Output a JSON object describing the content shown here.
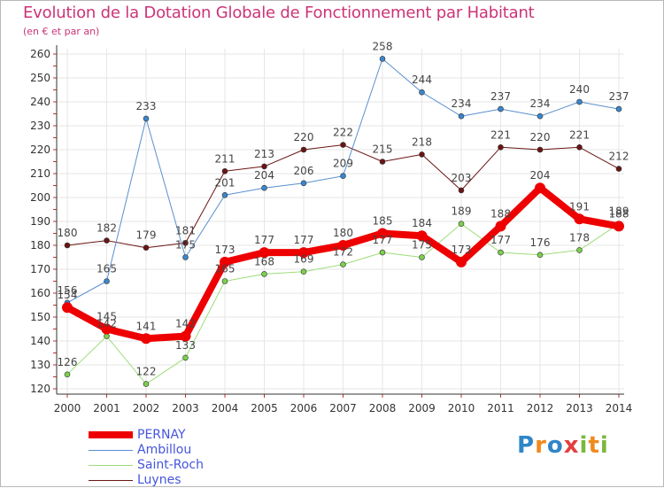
{
  "title": "Evolution de la Dotation Globale de Fonctionnement par Habitant",
  "subtitle": "(en € et par an)",
  "logo": [
    "Pro",
    "x",
    "i",
    "ti"
  ],
  "colors": {
    "title": "#cc3377",
    "axis": "#333333",
    "grid": "#e6e6e6",
    "label": "#444444",
    "legend_text": "#4455dd"
  },
  "chart_data": {
    "type": "line",
    "x": [
      "2000",
      "2001",
      "2002",
      "2003",
      "2004",
      "2005",
      "2006",
      "2007",
      "2008",
      "2009",
      "2010",
      "2011",
      "2012",
      "2013",
      "2014"
    ],
    "ylim": [
      120,
      260
    ],
    "yticks": [
      "120",
      "130",
      "140",
      "150",
      "160",
      "170",
      "180",
      "190",
      "200",
      "210",
      "220",
      "230",
      "240",
      "250",
      "260"
    ],
    "grid": true,
    "legend_position": "bottom-left",
    "series": [
      {
        "name": "Luynes",
        "color": "#6b1414",
        "marker": "#6b1414",
        "width": 1,
        "values": [
          180,
          182,
          179,
          181,
          211,
          213,
          220,
          222,
          215,
          218,
          203,
          221,
          220,
          221,
          212
        ],
        "labels": [
          "180",
          "182",
          "179",
          "181",
          "211",
          "213",
          "220",
          "222",
          "215",
          "218",
          "203",
          "221",
          "220",
          "221",
          "212"
        ]
      },
      {
        "name": "Ambillou",
        "color": "#5a8fd0",
        "marker": "#3a86cc",
        "width": 1,
        "values": [
          156,
          165,
          233,
          175,
          201,
          204,
          206,
          209,
          258,
          244,
          234,
          237,
          234,
          240,
          237
        ],
        "labels": [
          "156",
          "165",
          "233",
          "175",
          "201",
          "204",
          "206",
          "209",
          "258",
          "244",
          "234",
          "237",
          "234",
          "240",
          "237"
        ]
      },
      {
        "name": "Saint-Roch",
        "color": "#9edc7a",
        "marker": "#7ccf4e",
        "width": 1,
        "values": [
          126,
          142,
          122,
          133,
          165,
          168,
          169,
          172,
          177,
          175,
          189,
          177,
          176,
          178,
          189
        ],
        "labels": [
          "126",
          "142",
          "122",
          "133",
          "165",
          "168",
          "169",
          "172",
          "177",
          "175",
          "189",
          "177",
          "176",
          "178",
          "189"
        ]
      },
      {
        "name": "PERNAY",
        "color": "#ee0000",
        "marker": "#ee0000",
        "width": 8,
        "values": [
          154,
          145,
          141,
          142,
          173,
          177,
          177,
          180,
          185,
          184,
          173,
          188,
          204,
          191,
          188
        ],
        "labels": [
          "154",
          "145",
          "141",
          "142",
          "173",
          "177",
          "177",
          "180",
          "185",
          "184",
          "173",
          "188",
          "204",
          "191",
          "188"
        ]
      }
    ],
    "legend": [
      "PERNAY",
      "Ambillou",
      "Saint-Roch",
      "Luynes"
    ]
  }
}
